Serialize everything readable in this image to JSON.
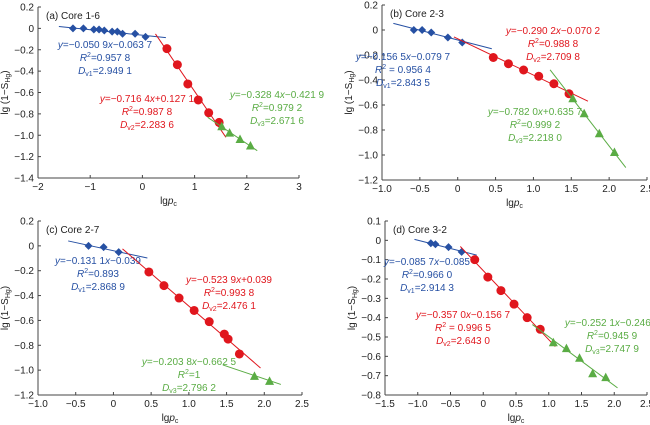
{
  "colors": {
    "blue": "#2650a3",
    "red": "#e0161d",
    "green": "#5aac44",
    "axis": "#444444"
  },
  "chart_data": [
    {
      "type": "scatter",
      "title": "(a) Core 1-6",
      "xlabel": "lgp_c",
      "ylabel": "lg (1−S_Hg)",
      "xlim": [
        -2,
        3
      ],
      "ylim": [
        -1.4,
        0.2
      ],
      "xticks": [
        -2,
        -1,
        0,
        1,
        2,
        3
      ],
      "xtick_labels": [
        "−2",
        "−1",
        "0",
        "1",
        "2",
        "3"
      ],
      "yticks": [
        0.2,
        0,
        -0.2,
        -0.4,
        -0.6,
        -0.8,
        -1.0,
        -1.2,
        -1.4
      ],
      "ytick_labels": [
        "0.2",
        "0",
        "−0.2",
        "−0.4",
        "−0.6",
        "−0.8",
        "−1.0",
        "−1.2",
        "−1.4"
      ],
      "grid": false,
      "series": [
        {
          "name": "segment-1",
          "marker": "diamond",
          "color": "blue",
          "x": [
            -1.33,
            -1.13,
            -0.93,
            -0.83,
            -0.73,
            -0.58,
            -0.48,
            -0.38,
            -0.14,
            0.06
          ],
          "y": [
            0.0,
            0.0,
            -0.01,
            -0.01,
            -0.02,
            -0.03,
            -0.03,
            -0.05,
            -0.05,
            -0.08
          ],
          "fit": {
            "slope": -0.0509,
            "intercept": -0.0637,
            "x_range": [
              -1.6,
              0.45
            ]
          },
          "annotation": {
            "eq": "y=−0.050 9x−0.063 7",
            "r2": "R²=0.957 8",
            "d": "D_v1=2.949 1"
          }
        },
        {
          "name": "segment-2",
          "marker": "circle",
          "color": "red",
          "x": [
            0.47,
            0.67,
            0.87,
            1.07,
            1.27,
            1.47
          ],
          "y": [
            -0.19,
            -0.34,
            -0.52,
            -0.67,
            -0.79,
            -0.88
          ],
          "fit": {
            "slope": -0.7164,
            "intercept": 0.1271,
            "x_range": [
              0.25,
              1.6
            ]
          },
          "annotation": {
            "eq": "y=−0.716 4x+0.127 1",
            "r2": "R²=0.987 8",
            "d": "D_v2=2.283 6"
          }
        },
        {
          "name": "segment-3",
          "marker": "triangle",
          "color": "green",
          "x": [
            1.52,
            1.67,
            1.87,
            2.07
          ],
          "y": [
            -0.92,
            -0.98,
            -1.04,
            -1.1
          ],
          "fit": {
            "slope": -0.3284,
            "intercept": -0.4219,
            "x_range": [
              1.25,
              2.2
            ]
          },
          "annotation": {
            "eq": "y=−0.328 4x−0.421 9",
            "r2": "R²=0.979 2",
            "d": "D_v3=2.671 6"
          }
        }
      ]
    },
    {
      "type": "scatter",
      "title": "(b) Core 2-3",
      "xlabel": "lgp_c",
      "ylabel": "lg (1−S_Hg)",
      "xlim": [
        -1.0,
        2.5
      ],
      "ylim": [
        -1.2,
        0.2
      ],
      "xticks": [
        -1.0,
        -0.5,
        0,
        0.5,
        1.0,
        1.5,
        2.0,
        2.5
      ],
      "xtick_labels": [
        "−1.0",
        "−0.5",
        "0",
        "0.5",
        "1.0",
        "1.5",
        "2.0",
        "2.5"
      ],
      "yticks": [
        0.2,
        0,
        -0.2,
        -0.4,
        -0.6,
        -0.8,
        -1.0,
        -1.2
      ],
      "ytick_labels": [
        "0.2",
        "0",
        "−0.2",
        "−0.4",
        "−0.6",
        "−0.8",
        "−1.0",
        "−1.2"
      ],
      "grid": false,
      "series": [
        {
          "name": "segment-1",
          "marker": "diamond",
          "color": "blue",
          "x": [
            -0.58,
            -0.47,
            -0.35,
            -0.13,
            0.06
          ],
          "y": [
            0.0,
            0.0,
            -0.02,
            -0.06,
            -0.1
          ],
          "fit": {
            "slope": -0.1565,
            "intercept": -0.0797,
            "x_range": [
              -0.85,
              0.45
            ]
          },
          "annotation": {
            "eq": "y=−0.156 5x−0.079 7",
            "r2": "R² = 0.956 4",
            "d": "D_v1=2.843 5"
          }
        },
        {
          "name": "segment-2",
          "marker": "circle",
          "color": "red",
          "x": [
            0.47,
            0.67,
            0.87,
            1.07,
            1.27,
            1.47
          ],
          "y": [
            -0.22,
            -0.27,
            -0.32,
            -0.37,
            -0.43,
            -0.51
          ],
          "fit": {
            "slope": -0.2902,
            "intercept": -0.0702,
            "x_range": [
              -0.05,
              1.72
            ]
          },
          "annotation": {
            "eq": "y=−0.290 2x−0.070 2",
            "r2": "R²=0.988 8",
            "d": "D_v2=2.709 8"
          }
        },
        {
          "name": "segment-3",
          "marker": "triangle",
          "color": "green",
          "x": [
            1.52,
            1.67,
            1.87,
            2.07
          ],
          "y": [
            -0.55,
            -0.67,
            -0.83,
            -0.98
          ],
          "fit": {
            "slope": -0.782,
            "intercept": 0.6357,
            "x_range": [
              1.22,
              2.22
            ]
          },
          "annotation": {
            "eq": "y=−0.782 0x+0.635 7",
            "r2": "R²=0.999 2",
            "d": "D_v3=2.218 0"
          }
        }
      ]
    },
    {
      "type": "scatter",
      "title": "(c) Core 2-7",
      "xlabel": "lgp_c",
      "ylabel": "lg (1−S_Hg)",
      "xlim": [
        -1.0,
        2.5
      ],
      "ylim": [
        -1.2,
        0.2
      ],
      "xticks": [
        -1.0,
        -0.5,
        0,
        0.5,
        1.0,
        1.5,
        2.0,
        2.5
      ],
      "xtick_labels": [
        "−1.0",
        "−0.5",
        "0",
        "0.5",
        "1.0",
        "1.5",
        "2.0",
        "2.5"
      ],
      "yticks": [
        0.2,
        0,
        -0.2,
        -0.4,
        -0.6,
        -0.8,
        -1.0,
        -1.2
      ],
      "ytick_labels": [
        "0.2",
        "0",
        "−0.2",
        "−0.4",
        "−0.6",
        "−0.8",
        "−1.0",
        "−1.2"
      ],
      "grid": false,
      "series": [
        {
          "name": "segment-1",
          "marker": "diamond",
          "color": "blue",
          "x": [
            -0.33,
            -0.13,
            0.07
          ],
          "y": [
            0.0,
            -0.01,
            -0.05
          ],
          "fit": {
            "slope": -0.1311,
            "intercept": -0.039,
            "x_range": [
              -0.6,
              0.45
            ]
          },
          "annotation": {
            "eq": "y=−0.131 1x−0.039",
            "r2": "R²=0.893",
            "d": "D_v1=2.868 9"
          }
        },
        {
          "name": "segment-2",
          "marker": "circle",
          "color": "red",
          "x": [
            0.47,
            0.67,
            0.87,
            1.07,
            1.27,
            1.47,
            1.52,
            1.67
          ],
          "y": [
            -0.21,
            -0.32,
            -0.42,
            -0.52,
            -0.61,
            -0.71,
            -0.75,
            -0.87
          ],
          "fit": {
            "slope": -0.5239,
            "intercept": 0.039,
            "x_range": [
              0.12,
              1.95
            ]
          },
          "annotation": {
            "eq": "y=−0.523 9x+0.039",
            "r2": "R²=0.993 8",
            "d": "D_v2=2.476 1"
          }
        },
        {
          "name": "segment-3",
          "marker": "triangle",
          "color": "green",
          "x": [
            1.87,
            2.07
          ],
          "y": [
            -1.05,
            -1.09
          ],
          "fit": {
            "slope": -0.2038,
            "intercept": -0.6625,
            "x_range": [
              1.45,
              2.22
            ]
          },
          "annotation": {
            "eq": "y=−0.203 8x−0.662 5",
            "r2": "R²=1",
            "d": "D_v3=2.796 2"
          }
        }
      ]
    },
    {
      "type": "scatter",
      "title": "(d) Core 3-2",
      "xlabel": "lgp_c",
      "ylabel": "lg (1−S_Hg)",
      "xlim": [
        -1.5,
        2.5
      ],
      "ylim": [
        -0.8,
        0.1
      ],
      "xticks": [
        -1.5,
        -1.0,
        -0.5,
        0,
        0.5,
        1.0,
        1.5,
        2.0,
        2.5
      ],
      "xtick_labels": [
        "−1.5",
        "−1.0",
        "−0.5",
        "0",
        "0.5",
        "1.0",
        "1.5",
        "2.0",
        "2.5"
      ],
      "yticks": [
        0.1,
        0,
        -0.1,
        -0.2,
        -0.3,
        -0.4,
        -0.5,
        -0.6,
        -0.7,
        -0.8
      ],
      "ytick_labels": [
        "0.1",
        "0",
        "−0.1",
        "−0.2",
        "−0.3",
        "−0.4",
        "−0.5",
        "−0.6",
        "−0.7",
        "−0.8"
      ],
      "grid": false,
      "series": [
        {
          "name": "segment-1",
          "marker": "diamond",
          "color": "blue",
          "x": [
            -0.8,
            -0.73,
            -0.53,
            -0.33
          ],
          "y": [
            -0.015,
            -0.02,
            -0.035,
            -0.06
          ],
          "fit": {
            "slope": -0.0857,
            "intercept": -0.085,
            "x_range": [
              -1.05,
              -0.1
            ]
          },
          "annotation": {
            "eq": "y=−0.085 7x−0.085",
            "r2": "R²=0.966 0",
            "d": "D_v1=2.914 3"
          }
        },
        {
          "name": "segment-2",
          "marker": "circle",
          "color": "red",
          "x": [
            -0.13,
            0.07,
            0.27,
            0.47,
            0.67,
            0.87
          ],
          "y": [
            -0.1,
            -0.19,
            -0.26,
            -0.33,
            -0.4,
            -0.46
          ],
          "fit": {
            "slope": -0.357,
            "intercept": -0.1567,
            "x_range": [
              -0.35,
              1.1
            ]
          },
          "annotation": {
            "eq": "y=−0.357 0x−0.156 7",
            "r2": "R² = 0.996 5",
            "d": "D_v2=2.643 0"
          }
        },
        {
          "name": "segment-3",
          "marker": "triangle",
          "color": "green",
          "x": [
            1.07,
            1.27,
            1.47,
            1.67,
            1.87
          ],
          "y": [
            -0.53,
            -0.56,
            -0.61,
            -0.69,
            -0.71
          ],
          "fit": {
            "slope": -0.2521,
            "intercept": -0.2465,
            "x_range": [
              0.75,
              2.05
            ]
          },
          "annotation": {
            "eq": "y=−0.252 1x−0.246 5",
            "r2": "R²=0.945 9",
            "d": "D_v3=2.747 9"
          }
        }
      ]
    }
  ]
}
